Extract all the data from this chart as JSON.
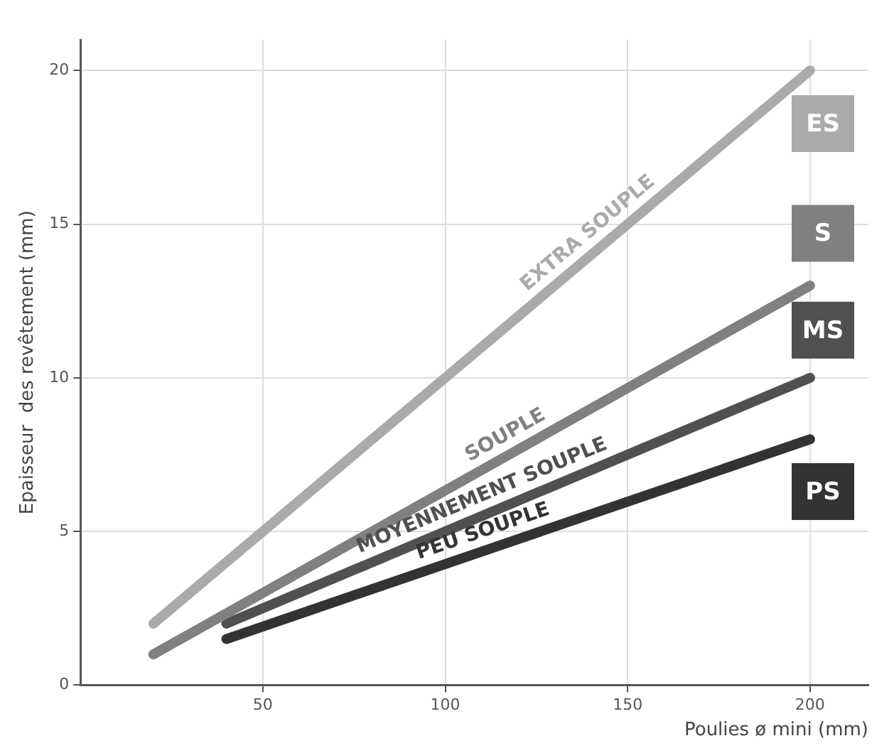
{
  "chart_data": {
    "type": "line",
    "xlabel": "Poulies ø mini (mm)",
    "ylabel": "Epaisseur  des revêtement (mm)",
    "xlim": [
      0,
      216
    ],
    "ylim": [
      0,
      21
    ],
    "xticks": [
      50,
      100,
      150,
      200
    ],
    "yticks": [
      0,
      5,
      10,
      15,
      20
    ],
    "grid": true,
    "legend": false,
    "line_style": "solid",
    "marker": "none",
    "series": [
      {
        "name": "EXTRA SOUPLE",
        "color": "#aaaaaa",
        "x": [
          20,
          200
        ],
        "values": [
          2,
          20
        ]
      },
      {
        "name": "SOUPLE",
        "color": "#808080",
        "x": [
          20,
          200
        ],
        "values": [
          1,
          13
        ]
      },
      {
        "name": "MOYENNEMENT SOUPLE",
        "color": "#505050",
        "x": [
          40,
          200
        ],
        "values": [
          2,
          10
        ]
      },
      {
        "name": "PEU SOUPLE",
        "color": "#333333",
        "x": [
          40,
          200
        ],
        "values": [
          1.5,
          8
        ]
      }
    ],
    "annotations": [
      "ES",
      "S",
      "MS",
      "PS"
    ]
  }
}
